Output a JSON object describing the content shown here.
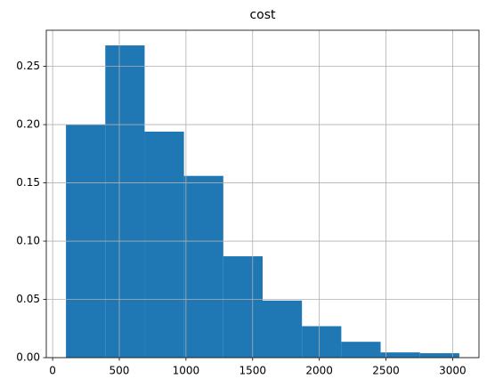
{
  "chart_data": {
    "type": "histogram",
    "title": "cost",
    "bins": [
      100,
      395,
      690,
      985,
      1280,
      1575,
      1870,
      2165,
      2460,
      2755,
      3050
    ],
    "values": [
      0.2,
      0.268,
      0.194,
      0.156,
      0.087,
      0.049,
      0.027,
      0.0136,
      0.0045,
      0.0038
    ],
    "color": "#1f77b4",
    "xlim": [
      -47.5,
      3197.5
    ],
    "xticks": [
      0,
      500,
      1000,
      1500,
      2000,
      2500,
      3000
    ],
    "ylim": [
      0,
      0.281
    ],
    "yticks": [
      {
        "value": 0,
        "label": "0.00"
      },
      {
        "value": 0.05,
        "label": "0.05"
      },
      {
        "value": 0.1,
        "label": "0.10"
      },
      {
        "value": 0.15,
        "label": "0.15"
      },
      {
        "value": 0.2,
        "label": "0.20"
      },
      {
        "value": 0.25,
        "label": "0.25"
      }
    ],
    "grid": true
  }
}
